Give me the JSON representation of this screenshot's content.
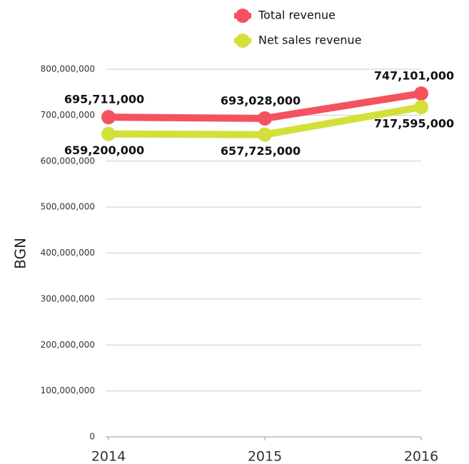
{
  "chart_data": {
    "type": "line",
    "y_label": "BGN",
    "categories": [
      "2014",
      "2015",
      "2016"
    ],
    "series": [
      {
        "name": "Total revenue",
        "color": "#f5525f",
        "values": [
          695711000,
          693028000,
          747101000
        ],
        "value_labels": [
          "695,711,000",
          "693,028,000",
          "747,101,000"
        ]
      },
      {
        "name": "Net sales revenue",
        "color": "#d4e03a",
        "values": [
          659200000,
          657725000,
          717595000
        ],
        "value_labels": [
          "659,200,000",
          "657,725,000",
          "717,595,000"
        ]
      }
    ],
    "ylim": [
      0,
      800000000
    ],
    "yticks": [
      0,
      {
        "value": 100000000,
        "label": "100,000,000"
      },
      {
        "value": 200000000,
        "label": "200,000,000"
      },
      {
        "value": 300000000,
        "label": "300,000,000"
      },
      {
        "value": 400000000,
        "label": "400,000,000"
      },
      {
        "value": 500000000,
        "label": "500,000,000"
      },
      {
        "value": 600000000,
        "label": "600,000,000"
      },
      {
        "value": 700000000,
        "label": "700,000,000"
      },
      {
        "value": 800000000,
        "label": "800,000,000"
      }
    ],
    "grid": true
  }
}
